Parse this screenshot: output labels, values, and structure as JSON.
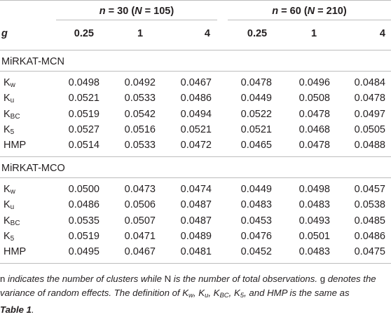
{
  "table": {
    "group_headers": [
      {
        "n_label": "n",
        "n_value": "= 30 (",
        "N_label": "N",
        "N_value": "= 105)"
      },
      {
        "n_label": "n",
        "n_value": "= 60 (",
        "N_label": "N",
        "N_value": "= 210)"
      }
    ],
    "g_label": "g",
    "columns": [
      "0.25",
      "1",
      "4",
      "0.25",
      "1",
      "4"
    ],
    "sections": [
      {
        "title": "MiRKAT-MCN",
        "rows": [
          {
            "base": "K",
            "sub": "w",
            "values": [
              "0.0498",
              "0.0492",
              "0.0467",
              "0.0478",
              "0.0496",
              "0.0484"
            ]
          },
          {
            "base": "K",
            "sub": "u",
            "values": [
              "0.0521",
              "0.0533",
              "0.0486",
              "0.0449",
              "0.0508",
              "0.0478"
            ]
          },
          {
            "base": "K",
            "sub": "BC",
            "values": [
              "0.0519",
              "0.0542",
              "0.0494",
              "0.0522",
              "0.0478",
              "0.0497"
            ]
          },
          {
            "base": "K",
            "sub": "5",
            "values": [
              "0.0527",
              "0.0516",
              "0.0521",
              "0.0521",
              "0.0468",
              "0.0505"
            ]
          },
          {
            "base": "HMP",
            "sub": "",
            "values": [
              "0.0514",
              "0.0533",
              "0.0472",
              "0.0465",
              "0.0478",
              "0.0488"
            ]
          }
        ]
      },
      {
        "title": "MiRKAT-MCO",
        "rows": [
          {
            "base": "K",
            "sub": "w",
            "values": [
              "0.0500",
              "0.0473",
              "0.0474",
              "0.0449",
              "0.0498",
              "0.0457"
            ]
          },
          {
            "base": "K",
            "sub": "u",
            "values": [
              "0.0486",
              "0.0506",
              "0.0487",
              "0.0483",
              "0.0483",
              "0.0538"
            ]
          },
          {
            "base": "K",
            "sub": "BC",
            "values": [
              "0.0535",
              "0.0507",
              "0.0487",
              "0.0453",
              "0.0493",
              "0.0485"
            ]
          },
          {
            "base": "K",
            "sub": "5",
            "values": [
              "0.0519",
              "0.0471",
              "0.0489",
              "0.0476",
              "0.0501",
              "0.0486"
            ]
          },
          {
            "base": "HMP",
            "sub": "",
            "values": [
              "0.0495",
              "0.0467",
              "0.0481",
              "0.0452",
              "0.0483",
              "0.0475"
            ]
          }
        ]
      }
    ]
  },
  "footnote": {
    "s1": "n",
    "s2": " indicates the number of clusters while ",
    "s3": "N",
    "s4": " is the number of total observations. ",
    "s5": "g",
    "s6": " denotes the variance of random effects. The definition of ",
    "k1": "K",
    "k1s": "w",
    "sep1": ", ",
    "k2": "K",
    "k2s": "u",
    "sep2": ", ",
    "k3": "K",
    "k3s": "BC",
    "sep3": ", ",
    "k4": "K",
    "k4s": "5",
    "s7": ", and HMP is the same as",
    "ref": "Table 1",
    "end": "."
  }
}
